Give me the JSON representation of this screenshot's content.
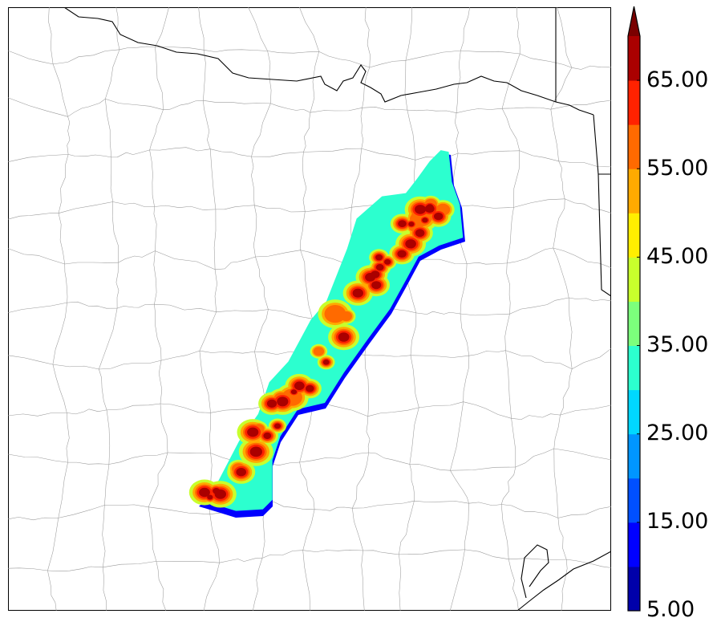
{
  "colorbar": {
    "labels": [
      "5.00",
      "15.00",
      "25.00",
      "35.00",
      "45.00",
      "55.00",
      "65.00"
    ],
    "label_values": [
      5,
      15,
      25,
      35,
      45,
      55,
      65
    ],
    "min": 5,
    "max": 70,
    "step": 5,
    "extend": "max",
    "colors": [
      "#0000aa",
      "#0000ff",
      "#0050ff",
      "#0096ff",
      "#00d8ff",
      "#2cffcf",
      "#7cff7c",
      "#c8ff2c",
      "#ffee00",
      "#ffaa00",
      "#ff6a00",
      "#ff2200",
      "#aa0000"
    ],
    "extend_color": "#7a0000"
  },
  "map": {
    "boundary_color": "#000000",
    "county_color": "#9a9a9a"
  }
}
